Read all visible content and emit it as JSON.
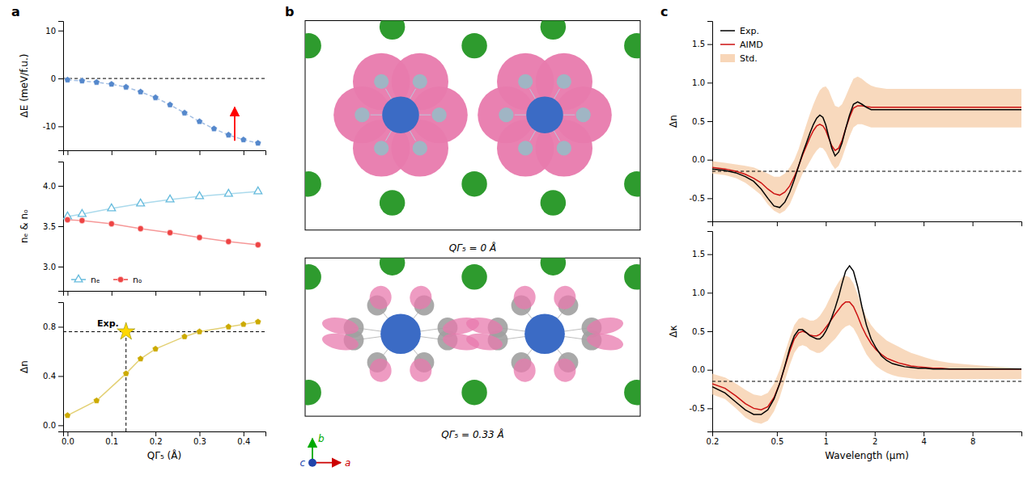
{
  "chart_data": [
    {
      "type": "line",
      "title": "a",
      "ylabel": "ΔE (meV/f.u.)",
      "x": [
        0.0,
        0.033,
        0.066,
        0.1,
        0.133,
        0.166,
        0.2,
        0.233,
        0.266,
        0.3,
        0.333,
        0.366,
        0.4,
        0.433
      ],
      "series": [
        {
          "values": [
            -0.3,
            -0.5,
            -0.8,
            -1.2,
            -1.8,
            -2.8,
            -4.0,
            -5.5,
            -7.2,
            -9.0,
            -10.5,
            -11.8,
            -12.8,
            -13.5
          ],
          "color": "#5588cc",
          "marker": "pentagon",
          "line_style": "dashed"
        }
      ],
      "xlim": [
        -0.01,
        0.45
      ],
      "xticks": [
        {
          "value": 0.0,
          "label": "0.0"
        },
        0.1,
        0.2,
        0.3,
        0.4
      ],
      "ylim": [
        -15,
        12
      ],
      "yticks": [
        -10,
        0,
        10
      ],
      "tick_labels": "y",
      "grid": false,
      "reference_lines": [
        {
          "y": 0
        }
      ],
      "arrows": [
        {
          "x": 0.38,
          "from": -13,
          "to": -6,
          "color": "red"
        }
      ]
    },
    {
      "type": "line",
      "ylabel": "nₑ & nₒ",
      "x": [
        0.0,
        0.033,
        0.1,
        0.166,
        0.233,
        0.3,
        0.366,
        0.433
      ],
      "series": [
        {
          "name": "nₑ",
          "values": [
            3.62,
            3.65,
            3.72,
            3.78,
            3.83,
            3.87,
            3.9,
            3.93
          ],
          "color": "#66bbdd",
          "marker": "triangle-open",
          "line_style": "solid"
        },
        {
          "name": "nₒ",
          "values": [
            3.58,
            3.57,
            3.53,
            3.47,
            3.42,
            3.36,
            3.31,
            3.27
          ],
          "color": "#ee4444",
          "marker": "circle",
          "line_style": "solid"
        }
      ],
      "xlim": [
        -0.01,
        0.45
      ],
      "xticks": [
        {
          "value": 0.0,
          "label": "0.0"
        },
        0.1,
        0.2,
        0.3,
        0.4
      ],
      "ylim": [
        2.7,
        4.3
      ],
      "yticks": [
        {
          "value": 3.0,
          "label": "3.0"
        },
        3.5,
        {
          "value": 4.0,
          "label": "4.0"
        }
      ],
      "tick_labels": "y",
      "grid": false,
      "legend": "lower left"
    },
    {
      "type": "line",
      "ylabel": "Δn",
      "xlabel": "QΓ₅ (Å)",
      "x": [
        0.0,
        0.066,
        0.133,
        0.166,
        0.2,
        0.266,
        0.3,
        0.366,
        0.4,
        0.433
      ],
      "series": [
        {
          "values": [
            0.08,
            0.2,
            0.42,
            0.54,
            0.62,
            0.72,
            0.76,
            0.8,
            0.82,
            0.84
          ],
          "color": "#ccaa00",
          "marker": "pentagon",
          "line_style": "solid"
        }
      ],
      "xlim": [
        -0.01,
        0.45
      ],
      "xticks": [
        {
          "value": 0.0,
          "label": "0.0"
        },
        0.1,
        0.2,
        0.3,
        0.4
      ],
      "ylim": [
        -0.05,
        1.0
      ],
      "yticks": [
        {
          "value": 0.0,
          "label": "0.0"
        },
        0.4,
        0.8
      ],
      "grid": false,
      "reference_lines": [
        {
          "y": 0.76
        },
        {
          "x": 0.133,
          "to": 0.76
        }
      ],
      "annotations": [
        {
          "text": "Exp.",
          "x": 0.133,
          "y": 0.76,
          "marker": "star",
          "color": "gold"
        }
      ]
    },
    {
      "type": "diagram",
      "title": "b",
      "structures": [
        {
          "label": "QΓ₅ = 0 Å"
        },
        {
          "label": "QΓ₅ = 0.33 Å"
        }
      ],
      "axes": [
        {
          "name": "b",
          "color": "#00aa00",
          "direction": "up"
        },
        {
          "name": "a",
          "color": "#cc0000",
          "direction": "right"
        },
        {
          "name": "c",
          "color": "#2244aa",
          "direction": "out"
        }
      ]
    },
    {
      "type": "line",
      "title": "c",
      "ylabel": "Δn",
      "log": "x",
      "x": [
        0.19999,
        0.23988,
        0.2799,
        0.31989,
        0.35975,
        0.39994,
        0.43954,
        0.47973,
        0.52,
        0.55976,
        0.59979,
        0.63973,
        0.68077,
        0.71945,
        0.76033,
        0.79983,
        0.83946,
        0.87903,
        0.91833,
        0.9594,
        1,
        1.0423,
        1.0889,
        1.1402,
        1.1995,
        1.2589,
        1.3243,
        1.3996,
        1.4791,
        1.5704,
        1.6672,
        1.7783,
        1.9011,
        2.0417,
        2.1979,
        2.3714,
        2.5704,
        2.799,
        3.0549,
        3.3497,
        3.6983,
        4.1021,
        4.5708,
        5.105,
        5.7544,
        6.5013,
        7.3961,
        8.4918,
        9.7948,
        11.298,
        13.092,
        15.311,
        15.996
      ],
      "series": [
        {
          "name": "Exp.",
          "color": "#000000",
          "line_style": "solid",
          "values": [
            -0.12,
            -0.14,
            -0.17,
            -0.22,
            -0.28,
            -0.38,
            -0.5,
            -0.6,
            -0.62,
            -0.55,
            -0.42,
            -0.26,
            -0.08,
            0.08,
            0.22,
            0.35,
            0.46,
            0.54,
            0.58,
            0.55,
            0.45,
            0.3,
            0.15,
            0.05,
            0.1,
            0.22,
            0.4,
            0.58,
            0.72,
            0.75,
            0.72,
            0.68,
            0.65,
            0.65,
            0.65,
            0.65,
            0.65,
            0.65,
            0.65,
            0.65,
            0.65,
            0.65,
            0.65,
            0.65,
            0.65,
            0.65,
            0.65,
            0.65,
            0.65,
            0.65,
            0.65,
            0.65,
            0.65
          ]
        },
        {
          "name": "AIMD",
          "color": "#cc1111",
          "line_style": "solid",
          "values": [
            -0.1,
            -0.12,
            -0.15,
            -0.19,
            -0.24,
            -0.3,
            -0.38,
            -0.44,
            -0.46,
            -0.42,
            -0.34,
            -0.22,
            -0.08,
            0.06,
            0.18,
            0.29,
            0.38,
            0.44,
            0.46,
            0.44,
            0.38,
            0.28,
            0.18,
            0.12,
            0.15,
            0.25,
            0.4,
            0.55,
            0.67,
            0.7,
            0.7,
            0.69,
            0.68,
            0.68,
            0.68,
            0.68,
            0.68,
            0.68,
            0.68,
            0.68,
            0.68,
            0.68,
            0.68,
            0.68,
            0.68,
            0.68,
            0.68,
            0.68,
            0.68,
            0.68,
            0.68,
            0.68,
            0.68
          ]
        },
        {
          "name": "Std.",
          "type": "band",
          "color": "#f5c59a",
          "upper": [
            -0.02,
            -0.04,
            -0.06,
            -0.08,
            -0.1,
            -0.14,
            -0.18,
            -0.22,
            -0.22,
            -0.18,
            -0.1,
            0.0,
            0.14,
            0.3,
            0.46,
            0.6,
            0.72,
            0.82,
            0.9,
            0.94,
            0.95,
            0.9,
            0.8,
            0.7,
            0.68,
            0.72,
            0.82,
            0.94,
            1.05,
            1.08,
            1.05,
            1.0,
            0.96,
            0.94,
            0.93,
            0.92,
            0.92,
            0.92,
            0.92,
            0.92,
            0.92,
            0.92,
            0.92,
            0.92,
            0.92,
            0.92,
            0.92,
            0.92,
            0.92,
            0.92,
            0.92,
            0.92,
            0.92
          ],
          "lower": [
            -0.18,
            -0.2,
            -0.24,
            -0.3,
            -0.38,
            -0.46,
            -0.58,
            -0.66,
            -0.7,
            -0.66,
            -0.58,
            -0.44,
            -0.3,
            -0.18,
            -0.1,
            -0.02,
            0.06,
            0.12,
            0.16,
            0.15,
            0.1,
            0.02,
            -0.06,
            -0.12,
            -0.08,
            0.02,
            0.16,
            0.3,
            0.42,
            0.46,
            0.46,
            0.44,
            0.42,
            0.42,
            0.42,
            0.42,
            0.42,
            0.42,
            0.42,
            0.42,
            0.42,
            0.42,
            0.42,
            0.42,
            0.42,
            0.42,
            0.42,
            0.42,
            0.42,
            0.42,
            0.42,
            0.42,
            0.42
          ]
        }
      ],
      "xlim": [
        0.19999,
        15.996
      ],
      "xticks": [
        0.2,
        0.5,
        1,
        2,
        4,
        8
      ],
      "ylim": [
        -0.8,
        1.8
      ],
      "yticks": [
        -0.5,
        {
          "value": 0.0,
          "label": "0.0"
        },
        0.5,
        {
          "value": 1.0,
          "label": "1.0"
        },
        1.5
      ],
      "tick_labels": "y",
      "grid": false,
      "legend": "upper left",
      "reference_lines": [
        {
          "y": -0.15
        }
      ]
    },
    {
      "type": "line",
      "ylabel": "Δκ",
      "xlabel": "Wavelength (μm)",
      "log": "x",
      "x": [
        0.19999,
        0.23988,
        0.2799,
        0.31989,
        0.35975,
        0.39994,
        0.43954,
        0.47973,
        0.52,
        0.55976,
        0.59979,
        0.63973,
        0.68077,
        0.71945,
        0.76033,
        0.79983,
        0.83946,
        0.87903,
        0.91833,
        0.9594,
        1,
        1.0423,
        1.0889,
        1.1402,
        1.1995,
        1.2589,
        1.3243,
        1.3996,
        1.4791,
        1.5704,
        1.6672,
        1.7783,
        1.9011,
        2.0417,
        2.1979,
        2.3714,
        2.5704,
        2.799,
        3.0549,
        3.3497,
        3.6983,
        4.1021,
        4.5708,
        5.105,
        5.7544,
        6.5013,
        7.3961,
        8.4918,
        9.7948,
        11.298,
        13.092,
        15.311,
        15.996
      ],
      "series": [
        {
          "color": "#000000",
          "line_style": "solid",
          "values": [
            -0.22,
            -0.3,
            -0.42,
            -0.52,
            -0.58,
            -0.58,
            -0.52,
            -0.38,
            -0.18,
            0.05,
            0.28,
            0.44,
            0.52,
            0.52,
            0.48,
            0.44,
            0.42,
            0.4,
            0.4,
            0.44,
            0.5,
            0.58,
            0.68,
            0.8,
            0.95,
            1.12,
            1.28,
            1.35,
            1.28,
            1.08,
            0.82,
            0.58,
            0.4,
            0.28,
            0.18,
            0.12,
            0.08,
            0.06,
            0.04,
            0.03,
            0.02,
            0.02,
            0.01,
            0.01,
            0.01,
            0.01,
            0.01,
            0.01,
            0.01,
            0.01,
            0.01,
            0.01,
            0.01
          ]
        },
        {
          "color": "#cc1111",
          "line_style": "solid",
          "values": [
            -0.18,
            -0.24,
            -0.34,
            -0.44,
            -0.5,
            -0.52,
            -0.48,
            -0.36,
            -0.18,
            0.04,
            0.24,
            0.4,
            0.48,
            0.5,
            0.48,
            0.45,
            0.44,
            0.44,
            0.46,
            0.5,
            0.55,
            0.6,
            0.66,
            0.72,
            0.78,
            0.84,
            0.88,
            0.88,
            0.82,
            0.7,
            0.56,
            0.44,
            0.34,
            0.26,
            0.2,
            0.15,
            0.12,
            0.09,
            0.07,
            0.05,
            0.04,
            0.03,
            0.02,
            0.02,
            0.01,
            0.01,
            0.01,
            0.01,
            0.01,
            0.01,
            0.01,
            0.01,
            0.01
          ]
        },
        {
          "type": "band",
          "color": "#f5c59a",
          "upper": [
            -0.05,
            -0.1,
            -0.18,
            -0.26,
            -0.32,
            -0.34,
            -0.3,
            -0.18,
            0.0,
            0.22,
            0.42,
            0.58,
            0.66,
            0.68,
            0.66,
            0.64,
            0.64,
            0.66,
            0.7,
            0.76,
            0.82,
            0.9,
            0.98,
            1.06,
            1.14,
            1.2,
            1.22,
            1.2,
            1.12,
            0.98,
            0.82,
            0.68,
            0.58,
            0.5,
            0.44,
            0.38,
            0.34,
            0.3,
            0.26,
            0.22,
            0.19,
            0.16,
            0.13,
            0.11,
            0.09,
            0.08,
            0.07,
            0.06,
            0.05,
            0.04,
            0.03,
            0.02,
            0.02
          ],
          "lower": [
            -0.32,
            -0.38,
            -0.5,
            -0.62,
            -0.68,
            -0.7,
            -0.66,
            -0.54,
            -0.36,
            -0.14,
            0.06,
            0.22,
            0.3,
            0.32,
            0.3,
            0.26,
            0.24,
            0.22,
            0.22,
            0.24,
            0.28,
            0.32,
            0.36,
            0.4,
            0.46,
            0.52,
            0.56,
            0.58,
            0.54,
            0.44,
            0.32,
            0.2,
            0.12,
            0.05,
            0.0,
            -0.04,
            -0.07,
            -0.09,
            -0.1,
            -0.11,
            -0.12,
            -0.12,
            -0.12,
            -0.12,
            -0.12,
            -0.12,
            -0.12,
            -0.12,
            -0.12,
            -0.12,
            -0.12,
            -0.12,
            -0.12
          ]
        }
      ],
      "xlim": [
        0.19999,
        15.996
      ],
      "xticks": [
        0.2,
        0.5,
        1,
        2,
        4,
        8
      ],
      "ylim": [
        -0.8,
        1.8
      ],
      "yticks": [
        -0.5,
        {
          "value": 0.0,
          "label": "0.0"
        },
        0.5,
        {
          "value": 1.0,
          "label": "1.0"
        },
        1.5
      ],
      "grid": false,
      "reference_lines": [
        {
          "y": -0.15
        }
      ]
    }
  ]
}
